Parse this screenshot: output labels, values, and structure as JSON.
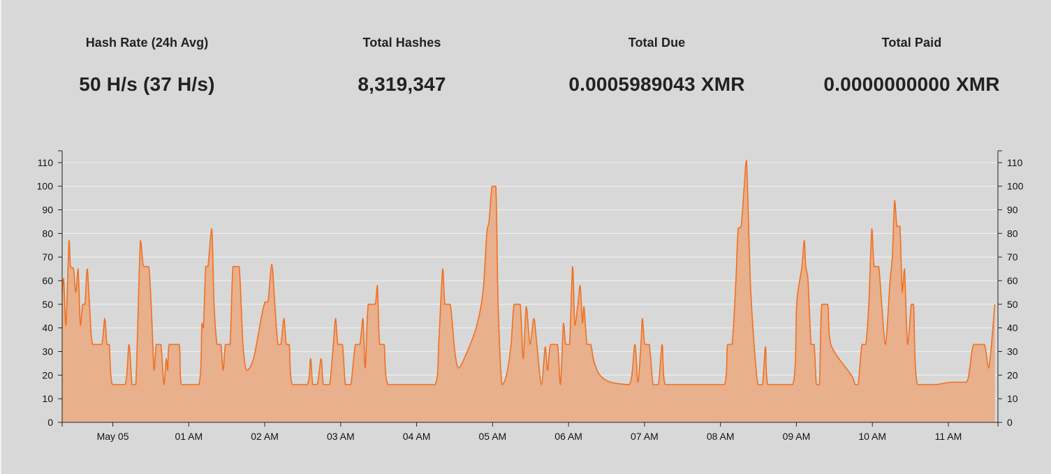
{
  "stats": [
    {
      "label": "Hash Rate (24h Avg)",
      "value": "50 H/s (37 H/s)"
    },
    {
      "label": "Total Hashes",
      "value": "8,319,347"
    },
    {
      "label": "Total Due",
      "value": "0.0005989043 XMR"
    },
    {
      "label": "Total Paid",
      "value": "0.0000000000 XMR"
    }
  ],
  "colors": {
    "background": "#d8d8d8",
    "line": "#f07020",
    "area": "#e8b08c",
    "grid": "#eeeeee"
  },
  "chart_data": {
    "type": "area",
    "title": "",
    "xlabel": "",
    "ylabel": "",
    "ylim": [
      0,
      115
    ],
    "y_ticks": [
      0,
      10,
      20,
      30,
      40,
      50,
      60,
      70,
      80,
      90,
      100,
      110
    ],
    "x_ticks": [
      {
        "t": 0.667,
        "label": "May 05"
      },
      {
        "t": 1.667,
        "label": "01 AM"
      },
      {
        "t": 2.667,
        "label": "02 AM"
      },
      {
        "t": 3.667,
        "label": "03 AM"
      },
      {
        "t": 4.667,
        "label": "04 AM"
      },
      {
        "t": 5.667,
        "label": "05 AM"
      },
      {
        "t": 6.667,
        "label": "06 AM"
      },
      {
        "t": 7.667,
        "label": "07 AM"
      },
      {
        "t": 8.667,
        "label": "08 AM"
      },
      {
        "t": 9.667,
        "label": "09 AM"
      },
      {
        "t": 10.667,
        "label": "10 AM"
      },
      {
        "t": 11.667,
        "label": "11 AM"
      }
    ],
    "xlim": [
      0,
      12.32
    ],
    "grid": true,
    "series": [
      {
        "values": [
          [
            0.0,
            55
          ],
          [
            0.02,
            61
          ],
          [
            0.05,
            41
          ],
          [
            0.09,
            77
          ],
          [
            0.11,
            66
          ],
          [
            0.15,
            65
          ],
          [
            0.18,
            55
          ],
          [
            0.21,
            65
          ],
          [
            0.24,
            41
          ],
          [
            0.27,
            50
          ],
          [
            0.3,
            50
          ],
          [
            0.33,
            65
          ],
          [
            0.36,
            50
          ],
          [
            0.4,
            33
          ],
          [
            0.52,
            33
          ],
          [
            0.56,
            44
          ],
          [
            0.59,
            33
          ],
          [
            0.62,
            33
          ],
          [
            0.66,
            16
          ],
          [
            0.83,
            16
          ],
          [
            0.88,
            33
          ],
          [
            0.92,
            16
          ],
          [
            0.97,
            16
          ],
          [
            1.03,
            77
          ],
          [
            1.07,
            66
          ],
          [
            1.14,
            66
          ],
          [
            1.18,
            44
          ],
          [
            1.21,
            22
          ],
          [
            1.24,
            33
          ],
          [
            1.3,
            33
          ],
          [
            1.34,
            16
          ],
          [
            1.37,
            27
          ],
          [
            1.39,
            22
          ],
          [
            1.41,
            33
          ],
          [
            1.54,
            33
          ],
          [
            1.57,
            16
          ],
          [
            1.8,
            16
          ],
          [
            1.84,
            42
          ],
          [
            1.86,
            40
          ],
          [
            1.89,
            66
          ],
          [
            1.92,
            66
          ],
          [
            1.97,
            82
          ],
          [
            2.0,
            50
          ],
          [
            2.04,
            33
          ],
          [
            2.09,
            33
          ],
          [
            2.12,
            22
          ],
          [
            2.15,
            33
          ],
          [
            2.21,
            33
          ],
          [
            2.25,
            66
          ],
          [
            2.33,
            66
          ],
          [
            2.38,
            33
          ],
          [
            2.43,
            22
          ],
          [
            2.52,
            27
          ],
          [
            2.62,
            44
          ],
          [
            2.67,
            51
          ],
          [
            2.71,
            51
          ],
          [
            2.76,
            67
          ],
          [
            2.8,
            50
          ],
          [
            2.84,
            33
          ],
          [
            2.88,
            33
          ],
          [
            2.92,
            44
          ],
          [
            2.95,
            33
          ],
          [
            2.99,
            33
          ],
          [
            3.03,
            16
          ],
          [
            3.23,
            16
          ],
          [
            3.27,
            27
          ],
          [
            3.3,
            16
          ],
          [
            3.36,
            16
          ],
          [
            3.41,
            27
          ],
          [
            3.44,
            16
          ],
          [
            3.52,
            16
          ],
          [
            3.57,
            33
          ],
          [
            3.6,
            44
          ],
          [
            3.63,
            33
          ],
          [
            3.69,
            33
          ],
          [
            3.73,
            16
          ],
          [
            3.8,
            16
          ],
          [
            3.86,
            33
          ],
          [
            3.92,
            33
          ],
          [
            3.96,
            44
          ],
          [
            3.99,
            23
          ],
          [
            4.03,
            50
          ],
          [
            4.12,
            50
          ],
          [
            4.15,
            58
          ],
          [
            4.18,
            33
          ],
          [
            4.24,
            33
          ],
          [
            4.29,
            16
          ],
          [
            4.91,
            16
          ],
          [
            4.96,
            35
          ],
          [
            5.01,
            65
          ],
          [
            5.04,
            50
          ],
          [
            5.11,
            50
          ],
          [
            5.17,
            30
          ],
          [
            5.22,
            23
          ],
          [
            5.32,
            29
          ],
          [
            5.45,
            40
          ],
          [
            5.54,
            55
          ],
          [
            5.59,
            80
          ],
          [
            5.62,
            85
          ],
          [
            5.66,
            100
          ],
          [
            5.71,
            100
          ],
          [
            5.74,
            50
          ],
          [
            5.79,
            16
          ],
          [
            5.85,
            20
          ],
          [
            5.91,
            33
          ],
          [
            5.95,
            50
          ],
          [
            6.03,
            50
          ],
          [
            6.07,
            27
          ],
          [
            6.11,
            49
          ],
          [
            6.16,
            33
          ],
          [
            6.21,
            44
          ],
          [
            6.25,
            33
          ],
          [
            6.31,
            16
          ],
          [
            6.36,
            32
          ],
          [
            6.39,
            22
          ],
          [
            6.43,
            33
          ],
          [
            6.52,
            33
          ],
          [
            6.56,
            16
          ],
          [
            6.6,
            42
          ],
          [
            6.63,
            33
          ],
          [
            6.68,
            33
          ],
          [
            6.72,
            66
          ],
          [
            6.75,
            41
          ],
          [
            6.79,
            50
          ],
          [
            6.82,
            58
          ],
          [
            6.85,
            42
          ],
          [
            6.87,
            49
          ],
          [
            6.91,
            33
          ],
          [
            6.96,
            33
          ],
          [
            7.0,
            26
          ],
          [
            7.08,
            20
          ],
          [
            7.22,
            17
          ],
          [
            7.47,
            16
          ],
          [
            7.54,
            33
          ],
          [
            7.58,
            17
          ],
          [
            7.62,
            33
          ],
          [
            7.64,
            44
          ],
          [
            7.67,
            33
          ],
          [
            7.73,
            33
          ],
          [
            7.78,
            16
          ],
          [
            7.85,
            16
          ],
          [
            7.9,
            33
          ],
          [
            7.94,
            16
          ],
          [
            8.72,
            16
          ],
          [
            8.76,
            33
          ],
          [
            8.82,
            33
          ],
          [
            8.87,
            60
          ],
          [
            8.9,
            82
          ],
          [
            8.94,
            83
          ],
          [
            8.98,
            100
          ],
          [
            9.01,
            111
          ],
          [
            9.06,
            60
          ],
          [
            9.11,
            33
          ],
          [
            9.16,
            16
          ],
          [
            9.22,
            16
          ],
          [
            9.26,
            32
          ],
          [
            9.29,
            16
          ],
          [
            9.62,
            16
          ],
          [
            9.67,
            50
          ],
          [
            9.71,
            60
          ],
          [
            9.74,
            66
          ],
          [
            9.77,
            77
          ],
          [
            9.79,
            66
          ],
          [
            9.82,
            60
          ],
          [
            9.86,
            33
          ],
          [
            9.9,
            33
          ],
          [
            9.93,
            16
          ],
          [
            9.97,
            16
          ],
          [
            10.0,
            50
          ],
          [
            10.08,
            50
          ],
          [
            10.12,
            33
          ],
          [
            10.39,
            20
          ],
          [
            10.44,
            16
          ],
          [
            10.48,
            16
          ],
          [
            10.53,
            33
          ],
          [
            10.58,
            33
          ],
          [
            10.62,
            50
          ],
          [
            10.66,
            82
          ],
          [
            10.69,
            66
          ],
          [
            10.75,
            66
          ],
          [
            10.79,
            50
          ],
          [
            10.84,
            33
          ],
          [
            10.9,
            60
          ],
          [
            10.93,
            70
          ],
          [
            10.96,
            94
          ],
          [
            10.99,
            83
          ],
          [
            11.03,
            83
          ],
          [
            11.06,
            55
          ],
          [
            11.09,
            65
          ],
          [
            11.13,
            33
          ],
          [
            11.18,
            50
          ],
          [
            11.21,
            50
          ],
          [
            11.26,
            16
          ],
          [
            11.5,
            16
          ],
          [
            11.7,
            17
          ],
          [
            11.9,
            17
          ],
          [
            11.95,
            23
          ],
          [
            12.0,
            33
          ],
          [
            12.14,
            33
          ],
          [
            12.2,
            23
          ],
          [
            12.28,
            50
          ]
        ]
      }
    ]
  }
}
